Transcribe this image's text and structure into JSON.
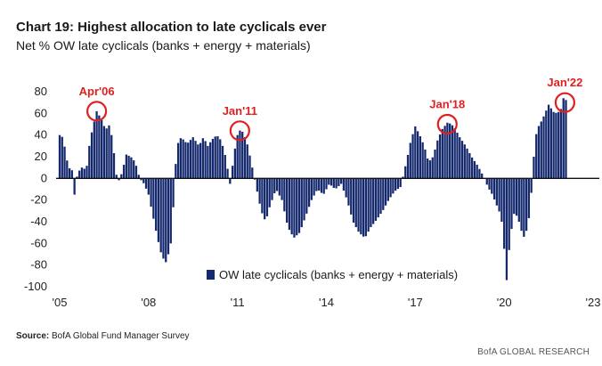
{
  "title": "Chart 19: Highest allocation to late cyclicals ever",
  "subtitle": "Net % OW late cyclicals (banks + energy + materials)",
  "source_label": "Source:",
  "source_text": "BofA Global Fund Manager Survey",
  "brand": "BofA GLOBAL RESEARCH",
  "colors": {
    "bar": "#14286e",
    "annotation": "#e02020",
    "axis": "#111111"
  },
  "chart_data": {
    "type": "bar",
    "title": "Chart 19: Highest allocation to late cyclicals ever",
    "ylabel": "Net % OW late cyclicals (banks + energy + materials)",
    "xlabel": "",
    "ylim": [
      -100,
      80
    ],
    "yticks": [
      80,
      60,
      40,
      20,
      0,
      -20,
      -40,
      -60,
      -80,
      -100
    ],
    "xlim": [
      2005.0,
      2023.0
    ],
    "xticks": [
      {
        "value": 2005,
        "label": "'05"
      },
      {
        "value": 2008,
        "label": "'08"
      },
      {
        "value": 2011,
        "label": "'11"
      },
      {
        "value": 2014,
        "label": "'14"
      },
      {
        "value": 2017,
        "label": "'17"
      },
      {
        "value": 2020,
        "label": "'20"
      },
      {
        "value": 2023,
        "label": "'23"
      }
    ],
    "legend": "OW late cyclicals (banks + energy + materials)",
    "series": [
      {
        "name": "OW late cyclicals (banks + energy + materials)",
        "keypoints": [
          [
            2005.0,
            40
          ],
          [
            2005.1,
            38
          ],
          [
            2005.2,
            25
          ],
          [
            2005.3,
            8
          ],
          [
            2005.4,
            12
          ],
          [
            2005.5,
            -15
          ],
          [
            2005.6,
            5
          ],
          [
            2005.75,
            10
          ],
          [
            2005.9,
            8
          ],
          [
            2006.0,
            30
          ],
          [
            2006.1,
            45
          ],
          [
            2006.25,
            62
          ],
          [
            2006.4,
            55
          ],
          [
            2006.55,
            45
          ],
          [
            2006.7,
            50
          ],
          [
            2006.85,
            20
          ],
          [
            2006.95,
            -5
          ],
          [
            2007.1,
            5
          ],
          [
            2007.25,
            22
          ],
          [
            2007.4,
            20
          ],
          [
            2007.55,
            15
          ],
          [
            2007.7,
            0
          ],
          [
            2007.85,
            -5
          ],
          [
            2008.0,
            -15
          ],
          [
            2008.15,
            -35
          ],
          [
            2008.3,
            -55
          ],
          [
            2008.45,
            -72
          ],
          [
            2008.6,
            -78
          ],
          [
            2008.75,
            -60
          ],
          [
            2008.85,
            -20
          ],
          [
            2008.95,
            30
          ],
          [
            2009.1,
            38
          ],
          [
            2009.3,
            32
          ],
          [
            2009.5,
            38
          ],
          [
            2009.7,
            30
          ],
          [
            2009.85,
            38
          ],
          [
            2010.0,
            30
          ],
          [
            2010.15,
            36
          ],
          [
            2010.3,
            40
          ],
          [
            2010.45,
            35
          ],
          [
            2010.6,
            20
          ],
          [
            2010.75,
            -5
          ],
          [
            2010.9,
            25
          ],
          [
            2011.0,
            40
          ],
          [
            2011.1,
            45
          ],
          [
            2011.2,
            42
          ],
          [
            2011.35,
            30
          ],
          [
            2011.5,
            10
          ],
          [
            2011.65,
            -10
          ],
          [
            2011.8,
            -30
          ],
          [
            2011.95,
            -40
          ],
          [
            2012.1,
            -25
          ],
          [
            2012.3,
            -10
          ],
          [
            2012.5,
            -20
          ],
          [
            2012.7,
            -45
          ],
          [
            2012.9,
            -55
          ],
          [
            2013.1,
            -50
          ],
          [
            2013.3,
            -35
          ],
          [
            2013.5,
            -20
          ],
          [
            2013.7,
            -10
          ],
          [
            2013.9,
            -15
          ],
          [
            2014.1,
            -5
          ],
          [
            2014.3,
            -10
          ],
          [
            2014.5,
            -5
          ],
          [
            2014.7,
            -20
          ],
          [
            2014.9,
            -40
          ],
          [
            2015.1,
            -50
          ],
          [
            2015.3,
            -55
          ],
          [
            2015.5,
            -45
          ],
          [
            2015.7,
            -38
          ],
          [
            2015.9,
            -30
          ],
          [
            2016.1,
            -20
          ],
          [
            2016.3,
            -12
          ],
          [
            2016.5,
            -8
          ],
          [
            2016.7,
            15
          ],
          [
            2016.85,
            35
          ],
          [
            2017.0,
            48
          ],
          [
            2017.15,
            40
          ],
          [
            2017.3,
            30
          ],
          [
            2017.45,
            15
          ],
          [
            2017.6,
            20
          ],
          [
            2017.75,
            35
          ],
          [
            2017.9,
            45
          ],
          [
            2018.1,
            52
          ],
          [
            2018.3,
            48
          ],
          [
            2018.5,
            38
          ],
          [
            2018.7,
            30
          ],
          [
            2018.9,
            20
          ],
          [
            2019.1,
            12
          ],
          [
            2019.3,
            2
          ],
          [
            2019.45,
            -8
          ],
          [
            2019.6,
            -15
          ],
          [
            2019.75,
            -25
          ],
          [
            2019.9,
            -35
          ],
          [
            2020.0,
            -65
          ],
          [
            2020.08,
            -95
          ],
          [
            2020.2,
            -55
          ],
          [
            2020.35,
            -30
          ],
          [
            2020.5,
            -40
          ],
          [
            2020.65,
            -55
          ],
          [
            2020.8,
            -45
          ],
          [
            2020.9,
            -20
          ],
          [
            2021.0,
            20
          ],
          [
            2021.1,
            45
          ],
          [
            2021.3,
            55
          ],
          [
            2021.5,
            68
          ],
          [
            2021.7,
            60
          ],
          [
            2021.9,
            62
          ],
          [
            2022.0,
            74
          ],
          [
            2022.1,
            72
          ],
          [
            2022.15,
            70
          ]
        ]
      }
    ],
    "annotations": [
      {
        "label": "Apr'06",
        "x": 2006.25,
        "y": 62
      },
      {
        "label": "Jan'11",
        "x": 2011.08,
        "y": 44
      },
      {
        "label": "Jan'18",
        "x": 2018.08,
        "y": 50
      },
      {
        "label": "Jan'22",
        "x": 2022.05,
        "y": 70
      }
    ]
  }
}
